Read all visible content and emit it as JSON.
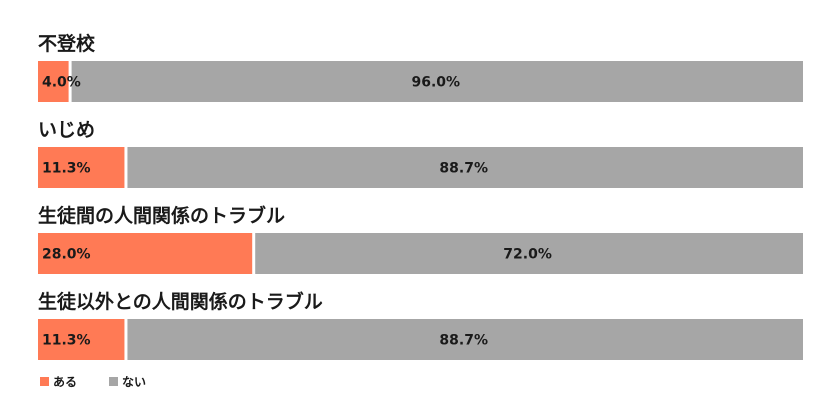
{
  "chart_data": {
    "type": "bar",
    "stacked": true,
    "orientation": "horizontal",
    "unit": "%",
    "categories": [
      "不登校",
      "いじめ",
      "生徒間の人間関係のトラブル",
      "生徒以外との人間関係のトラブル"
    ],
    "series": [
      {
        "name": "ある",
        "color": "#ff7a55",
        "values": [
          4.0,
          11.3,
          28.0,
          11.3
        ],
        "labels": [
          "4.0%",
          "11.3%",
          "28.0%",
          "11.3%"
        ]
      },
      {
        "name": "ない",
        "color": "#a6a6a6",
        "values": [
          96.0,
          88.7,
          72.0,
          88.7
        ],
        "labels": [
          "96.0%",
          "88.7%",
          "72.0%",
          "88.7%"
        ]
      }
    ],
    "xlim": [
      0,
      100
    ],
    "grid": false,
    "legend_position": "bottom-left"
  }
}
